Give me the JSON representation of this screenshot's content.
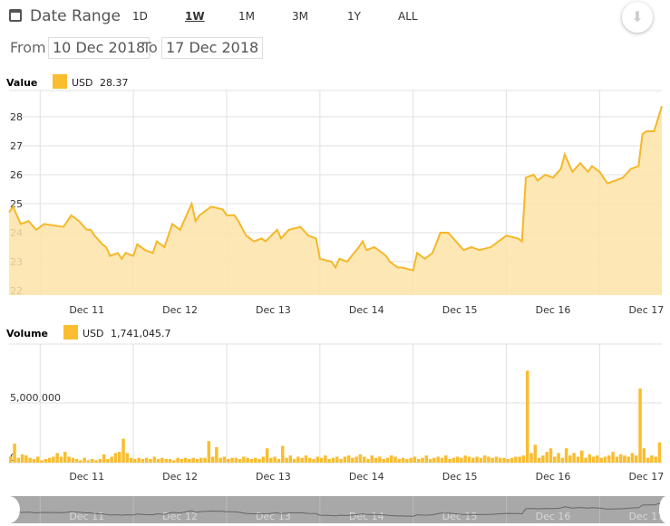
{
  "header": {
    "title": "Date Range",
    "ranges": [
      "1D",
      "1W",
      "1M",
      "3M",
      "1Y",
      "ALL"
    ],
    "active_range": "1W",
    "from_label": "From",
    "from_value": "10 Dec 2018",
    "to_label": "To",
    "to_value": "17 Dec 2018"
  },
  "colors": {
    "accent": "#f9bd2f",
    "line": "#f5b82a",
    "fill": "#fbe3a8",
    "grid": "#e0e0e0"
  },
  "chart_data": [
    {
      "type": "area",
      "title": "Value",
      "legend": {
        "label": "USD",
        "value": "28.37"
      },
      "ylim": [
        21.8,
        28.9
      ],
      "yticks": [
        "22",
        "23",
        "24",
        "25",
        "26",
        "27",
        "28"
      ],
      "xticks": [
        "Dec 11",
        "Dec 12",
        "Dec 13",
        "Dec 14",
        "Dec 15",
        "Dec 16",
        "Dec 17"
      ],
      "xunit": "hours since 10 Dec",
      "x": [
        0,
        1,
        3,
        5,
        7,
        9,
        14,
        16,
        18,
        20,
        21,
        22,
        24,
        25,
        26,
        28,
        29,
        30,
        32,
        33,
        35,
        37,
        38,
        40,
        42,
        44,
        45,
        47,
        48,
        49,
        52,
        55,
        56,
        58,
        59,
        61,
        63,
        65,
        66,
        69,
        70,
        72,
        75,
        77,
        79,
        80,
        83,
        84,
        85,
        87,
        90,
        91,
        92,
        94,
        97,
        98,
        100,
        101,
        104,
        105,
        107,
        109,
        111,
        113,
        115,
        117,
        119,
        121,
        124,
        126,
        128,
        131,
        132,
        133,
        135,
        136,
        138,
        140,
        142,
        143,
        145,
        147,
        149,
        150,
        152,
        154,
        156,
        158,
        160,
        162,
        163,
        164,
        166,
        168
      ],
      "y": [
        24.7,
        24.9,
        24.3,
        24.4,
        24.1,
        24.3,
        24.2,
        24.6,
        24.4,
        24.1,
        24.1,
        23.9,
        23.6,
        23.5,
        23.2,
        23.3,
        23.1,
        23.3,
        23.2,
        23.6,
        23.4,
        23.3,
        23.7,
        23.5,
        24.3,
        24.1,
        24.4,
        25.0,
        24.4,
        24.6,
        24.9,
        24.8,
        24.6,
        24.6,
        24.4,
        23.9,
        23.7,
        23.8,
        23.7,
        24.1,
        23.8,
        24.1,
        24.2,
        23.9,
        23.8,
        23.1,
        23.0,
        22.8,
        23.1,
        23.0,
        23.5,
        23.7,
        23.4,
        23.5,
        23.2,
        23.0,
        22.8,
        22.8,
        22.7,
        23.3,
        23.1,
        23.3,
        24.0,
        24.0,
        23.7,
        23.4,
        23.5,
        23.4,
        23.5,
        23.7,
        23.9,
        23.8,
        23.7,
        25.9,
        26.0,
        25.8,
        26.0,
        25.9,
        26.2,
        26.7,
        26.1,
        26.4,
        26.1,
        26.3,
        26.1,
        25.7,
        25.8,
        25.9,
        26.2,
        26.3,
        27.4,
        27.5,
        27.5,
        28.37
      ]
    },
    {
      "type": "bar",
      "title": "Volume",
      "legend": {
        "label": "USD",
        "value": "1,741,045.7"
      },
      "ylim": [
        0,
        10000000
      ],
      "yticks": [
        "0",
        "5,000,000"
      ],
      "xticks": [
        "Dec 11",
        "Dec 12",
        "Dec 13",
        "Dec 14",
        "Dec 15",
        "Dec 16",
        "Dec 17"
      ],
      "xunit": "hours since 10 Dec (2h bins)",
      "values": [
        0.5,
        1.6,
        0.4,
        0.7,
        0.6,
        0.4,
        0.3,
        0.5,
        0.2,
        0.3,
        0.4,
        0.5,
        0.8,
        0.5,
        0.9,
        0.5,
        0.4,
        0.3,
        0.2,
        0.4,
        0.2,
        0.3,
        0.2,
        0.3,
        0.7,
        0.3,
        0.5,
        0.8,
        0.9,
        2.0,
        0.8,
        0.4,
        0.3,
        0.4,
        0.3,
        0.4,
        0.3,
        0.5,
        0.3,
        0.4,
        0.3,
        0.3,
        0.2,
        0.4,
        0.3,
        0.4,
        0.3,
        0.4,
        0.3,
        0.4,
        0.4,
        1.8,
        0.5,
        1.3,
        0.4,
        0.5,
        0.3,
        0.4,
        0.4,
        0.3,
        0.5,
        0.4,
        0.3,
        0.4,
        0.3,
        0.5,
        1.2,
        0.4,
        0.5,
        0.3,
        1.4,
        0.4,
        0.6,
        0.3,
        0.5,
        0.4,
        0.6,
        0.4,
        0.3,
        0.5,
        0.4,
        0.6,
        0.3,
        0.4,
        0.5,
        0.3,
        0.5,
        0.6,
        0.4,
        0.5,
        0.7,
        0.5,
        0.3,
        0.6,
        0.4,
        0.5,
        0.3,
        0.4,
        0.6,
        0.5,
        0.3,
        0.4,
        0.3,
        0.4,
        0.5,
        0.3,
        0.4,
        0.6,
        0.3,
        0.4,
        0.5,
        0.4,
        0.6,
        0.3,
        0.4,
        0.5,
        0.4,
        0.6,
        0.5,
        0.4,
        0.5,
        0.4,
        0.6,
        0.5,
        0.4,
        0.5,
        0.4,
        0.4,
        0.3,
        0.4,
        0.5,
        0.5,
        0.6,
        7.7,
        0.8,
        1.5,
        0.4,
        0.6,
        0.9,
        1.2,
        0.5,
        0.8,
        0.4,
        1.2,
        0.6,
        0.8,
        0.5,
        1.0,
        0.4,
        0.7,
        0.5,
        0.6,
        0.4,
        0.5,
        0.6,
        0.9,
        0.5,
        0.7,
        0.6,
        0.5,
        0.8,
        0.6,
        6.2,
        1.2,
        0.4,
        0.6,
        0.5,
        1.7
      ]
    }
  ]
}
